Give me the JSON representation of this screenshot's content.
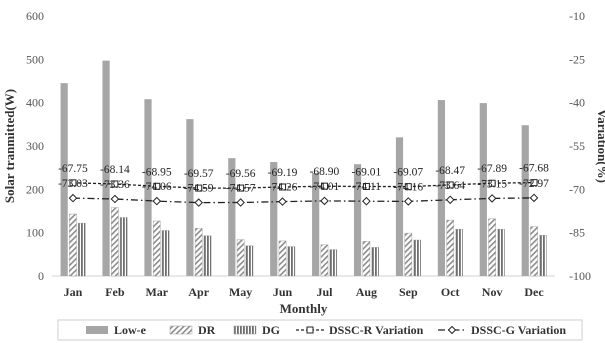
{
  "chart_data": {
    "type": "bar",
    "xlabel": "Monthly",
    "ylabel": "Solar tranmitted(W)",
    "y2label": "Variation(%)",
    "ylim": [
      0,
      600
    ],
    "yticks": [
      0,
      100,
      200,
      300,
      400,
      500,
      600
    ],
    "y2lim": [
      -100,
      -10
    ],
    "y2ticks": [
      -10,
      -25,
      -40,
      -55,
      -70,
      -85,
      -100
    ],
    "grid": false,
    "legend_position": "bottom",
    "categories": [
      "Jan",
      "Feb",
      "Mar",
      "Apr",
      "May",
      "Jun",
      "Jul",
      "Aug",
      "Sep",
      "Oct",
      "Nov",
      "Dec"
    ],
    "series": [
      {
        "name": "Low-e",
        "type": "bar",
        "axis": "left",
        "color": "#a6a6a6",
        "values": [
          445,
          497,
          408,
          362,
          272,
          263,
          238,
          258,
          320,
          406,
          399,
          348
        ]
      },
      {
        "name": "DR",
        "type": "bar",
        "axis": "left",
        "color": "#9a9a9a",
        "pattern": "diagonal",
        "values": [
          143,
          158,
          127,
          110,
          84,
          81,
          72,
          80,
          99,
          129,
          132,
          114
        ]
      },
      {
        "name": "DG",
        "type": "bar",
        "axis": "left",
        "color": "#9a9a9a",
        "pattern": "vertical",
        "values": [
          122,
          135,
          105,
          93,
          70,
          68,
          61,
          66,
          83,
          108,
          108,
          94
        ]
      },
      {
        "name": "DSSC-R Variation",
        "type": "line",
        "axis": "right",
        "marker": "square",
        "dash": "short-dash",
        "values": [
          -67.75,
          -68.14,
          -68.95,
          -69.57,
          -69.56,
          -69.19,
          -68.9,
          -69.01,
          -69.07,
          -68.47,
          -67.89,
          -67.68
        ],
        "labels": [
          "-67.75",
          "-68.14",
          "-68.95",
          "-69.57",
          "-69.56",
          "-69.19",
          "-68.90",
          "-69.01",
          "-69.07",
          "-68.47",
          "-67.89",
          "-67.68"
        ]
      },
      {
        "name": "DSSC-G Variation",
        "type": "line",
        "axis": "right",
        "marker": "diamond",
        "dash": "dash-dot",
        "values": [
          -73.03,
          -73.36,
          -74.06,
          -74.59,
          -74.57,
          -74.26,
          -74.01,
          -74.11,
          -74.16,
          -73.64,
          -73.15,
          -72.97
        ],
        "labels": [
          "-73.03",
          "-73.36",
          "-74.06",
          "-74.59",
          "-74.57",
          "-74.26",
          "-74.01",
          "-74.11",
          "-74.16",
          "-73.64",
          "-73.15",
          "-72.97"
        ]
      }
    ]
  }
}
